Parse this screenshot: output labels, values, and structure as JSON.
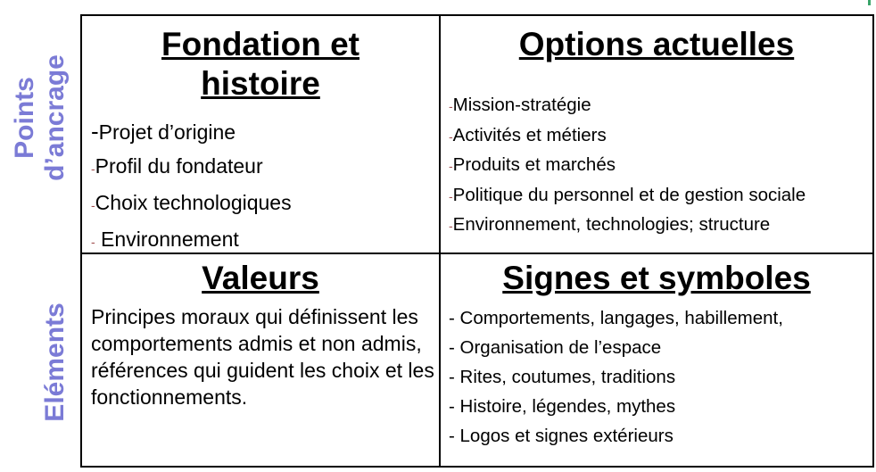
{
  "side_labels": {
    "top_line1": "Points",
    "top_line2": "d’ancrage",
    "bottom": "Eléments"
  },
  "cells": {
    "fondation": {
      "title_line1": "Fondation et",
      "title_line2": "histoire",
      "items": [
        "Projet d’origine",
        "Profil du fondateur",
        "Choix technologiques",
        " Environnement"
      ]
    },
    "options": {
      "title": "Options actuelles",
      "items": [
        "Mission-stratégie",
        "Activités et métiers",
        "Produits et marchés",
        "Politique du personnel et de gestion sociale",
        "Environnement, technologies; structure"
      ]
    },
    "valeurs": {
      "title": "Valeurs",
      "text": "Principes moraux qui définissent les comportements admis et non admis, références qui guident les choix et les fonctionnements."
    },
    "signes": {
      "title": "Signes et symboles",
      "items": [
        "- Comportements, langages, habillement,",
        "- Organisation de l’espace",
        "- Rites, coutumes, traditions",
        "- Histoire, légendes, mythes",
        "- Logos et signes extérieurs"
      ]
    }
  },
  "colors": {
    "side_label": "#7b7bd6",
    "dash": "#a05050",
    "border": "#000000"
  }
}
